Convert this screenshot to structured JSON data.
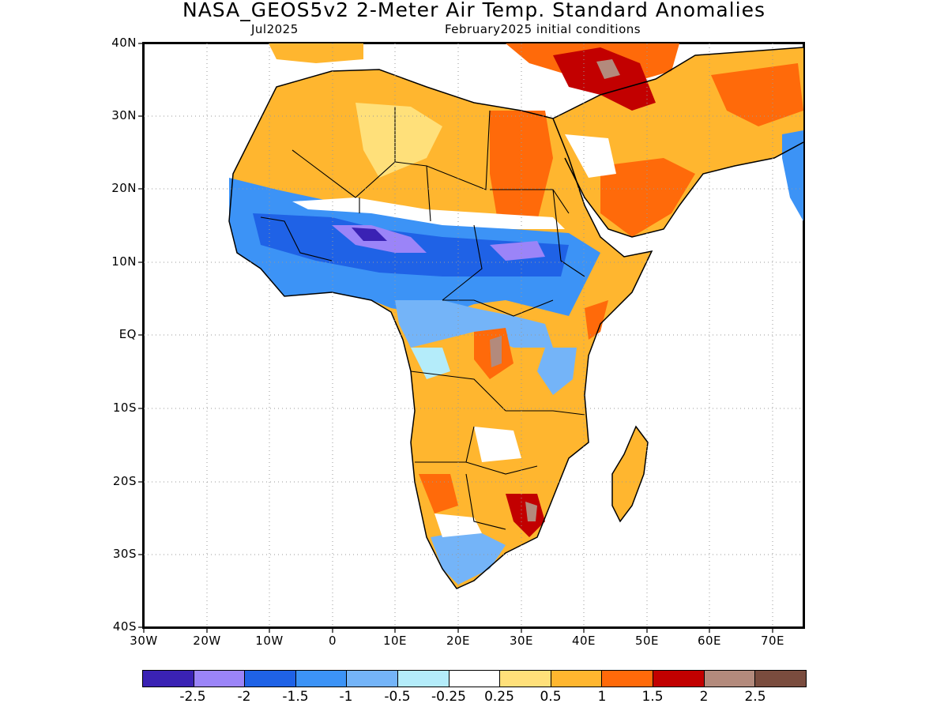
{
  "header": {
    "title": "NASA_GEOS5v2 2-Meter Air Temp. Standard Anomalies",
    "valid_month": "Jul2025",
    "init": "February2025 initial conditions"
  },
  "map": {
    "lon_range": [
      -30,
      75
    ],
    "lat_range": [
      -40,
      40
    ],
    "lat_labels": [
      "40N",
      "30N",
      "20N",
      "10N",
      "EQ",
      "10S",
      "20S",
      "30S",
      "40S"
    ],
    "lon_labels": [
      "30W",
      "20W",
      "10W",
      "0",
      "10E",
      "20E",
      "30E",
      "40E",
      "50E",
      "60E",
      "70E"
    ],
    "grid": "dotted"
  },
  "colorbar": {
    "colors": [
      "#3a22b4",
      "#9b84f8",
      "#1f62e6",
      "#3c93f6",
      "#74b4f8",
      "#b4ecfa",
      "#ffffff",
      "#ffe07a",
      "#ffb62f",
      "#ff6a0a",
      "#c20000",
      "#b38a7c",
      "#7a4c3e"
    ],
    "labels": [
      "-2.5",
      "-2",
      "-1.5",
      "-1",
      "-0.5",
      "-0.25",
      "0.25",
      "0.5",
      "1",
      "1.5",
      "2",
      "2.5"
    ]
  }
}
